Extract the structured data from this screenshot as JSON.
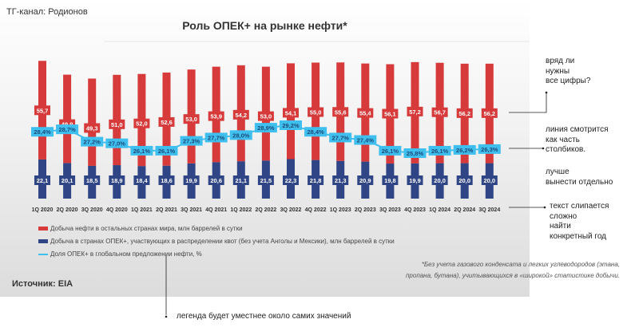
{
  "header": {
    "channel": "ТГ-канал: Родионов",
    "source": "Источник: EIA"
  },
  "chart_data": {
    "type": "bar",
    "title": "Роль ОПЕК+ на рынке нефти*",
    "categories": [
      "1Q 2020",
      "2Q 2020",
      "3Q 2020",
      "4Q 2020",
      "1Q 2021",
      "2Q 2021",
      "3Q 2021",
      "4Q 2021",
      "1Q 2022",
      "2Q 2022",
      "3Q 2022",
      "4Q 2022",
      "1Q 2023",
      "2Q 2023",
      "3Q 2023",
      "4Q 2023",
      "1Q 2024",
      "2Q 2024",
      "3Q 2024"
    ],
    "stacked": true,
    "series": [
      {
        "name": "Добыча в странах ОПЕК+, участвующих в распределении квот (без учета Анголы и Мексики), млн баррелей в сутки",
        "type": "bar",
        "color": "#2f4585",
        "values": [
          22.1,
          20.1,
          18.5,
          18.9,
          18.4,
          18.6,
          19.9,
          20.6,
          21.1,
          21.5,
          22.3,
          21.8,
          21.3,
          20.9,
          19.8,
          19.9,
          20.0,
          20.0,
          20.0
        ]
      },
      {
        "name": "Добыча нефти в остальных странах мира, млн баррелей в сутки",
        "type": "bar",
        "color": "#d63a3a",
        "values": [
          55.7,
          49.9,
          49.3,
          51.0,
          52.0,
          52.6,
          53.0,
          53.9,
          54.2,
          53.0,
          54.1,
          55.0,
          55.6,
          55.4,
          56.1,
          57.2,
          56.7,
          56.2,
          56.2
        ]
      },
      {
        "name": "Доля ОПЕК+ в глобальном предложении нефти, %",
        "type": "line",
        "color": "#3fbfee",
        "values": [
          28.4,
          28.7,
          27.2,
          27.0,
          26.1,
          26.1,
          27.3,
          27.7,
          28.0,
          28.9,
          29.2,
          28.4,
          27.7,
          27.4,
          26.1,
          25.8,
          26.1,
          26.2,
          26.3
        ]
      }
    ],
    "footnote": [
      "*Без учета газового конденсата и легких углеводородов (этана,",
      "пропана, бутана), учитывающихся в «широкой» статистике добычи."
    ],
    "legend_placement": "bottom-left",
    "grid": false
  },
  "annotations": {
    "numbers": [
      "вряд ли",
      "нужны",
      "все цифры?"
    ],
    "line": [
      "линия смотрится",
      "как часть",
      "столбиков."
    ],
    "separate": [
      "лучше",
      "вынести отдельно"
    ],
    "years": [
      "текст слипается",
      "сложно",
      "найти",
      "конкретный год"
    ],
    "legend": "легенда будет уместнее около самих значений"
  }
}
